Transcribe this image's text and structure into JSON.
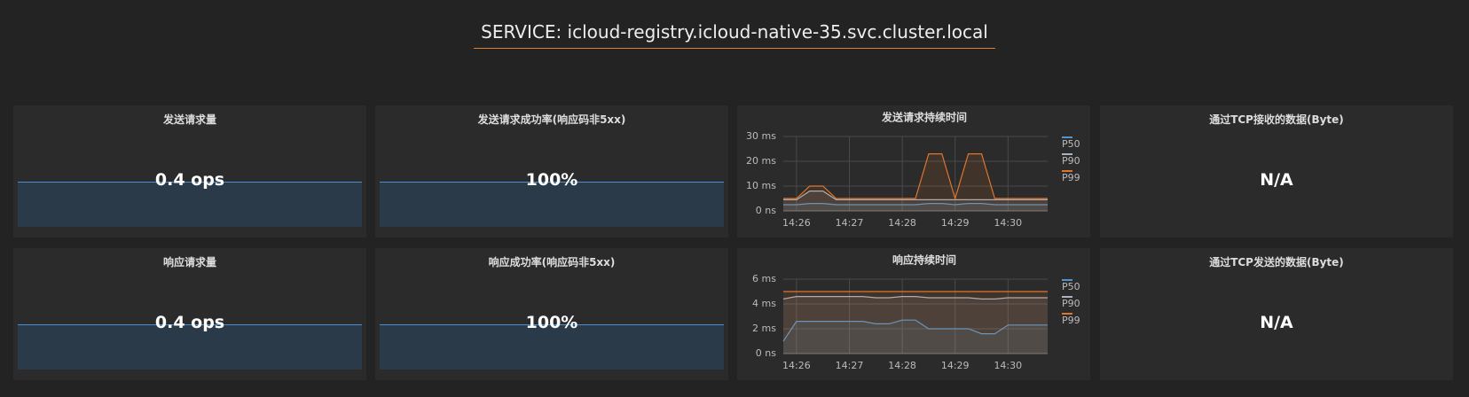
{
  "header": {
    "title": "SERVICE: icloud-registry.icloud-native-35.svc.cluster.local"
  },
  "panels": [
    {
      "title": "发送请求量",
      "value": "0.4 ops"
    },
    {
      "title": "发送请求成功率(响应码非5xx)",
      "value": "100%"
    },
    {
      "title": "通过TCP接收的数据(Byte)",
      "value": "N/A"
    },
    {
      "title": "响应请求量",
      "value": "0.4 ops"
    },
    {
      "title": "响应成功率(响应码非5xx)",
      "value": "100%"
    },
    {
      "title": "通过TCP发送的数据(Byte)",
      "value": "N/A"
    }
  ],
  "chart_data": [
    {
      "type": "line",
      "title": "发送请求持续时间",
      "categories": [
        null,
        "14:26",
        null,
        null,
        null,
        "14:27",
        null,
        null,
        null,
        "14:28",
        null,
        null,
        null,
        "14:29",
        null,
        null,
        null,
        "14:30",
        null,
        null,
        null
      ],
      "series": [
        {
          "name": "P50",
          "color": "#5195ce",
          "values": [
            2.5,
            2.5,
            3,
            3,
            2.5,
            2.5,
            2.5,
            2.5,
            2.5,
            2.5,
            2.5,
            3,
            3,
            2.5,
            3,
            3,
            2.5,
            2.5,
            2.5,
            2.5,
            2.5
          ]
        },
        {
          "name": "P90",
          "color": "#a9b4c0",
          "values": [
            4.5,
            4.5,
            8,
            8,
            4.5,
            4.5,
            4.5,
            4.5,
            4.5,
            4.5,
            4.5,
            4.5,
            4.5,
            4.5,
            4.5,
            4.5,
            4.5,
            4.5,
            4.5,
            4.5,
            4.5
          ]
        },
        {
          "name": "P99",
          "color": "#e0752d",
          "values": [
            5,
            5,
            10,
            10,
            5,
            5,
            5,
            5,
            5,
            5,
            5,
            23,
            23,
            5,
            23,
            23,
            5,
            5,
            5,
            5,
            5
          ]
        }
      ],
      "ylim": [
        0,
        30
      ],
      "yticks": [
        {
          "value": 0,
          "label": "0 ns"
        },
        {
          "value": 10,
          "label": "10 ms"
        },
        {
          "value": 20,
          "label": "20 ms"
        },
        {
          "value": 30,
          "label": "30 ms"
        }
      ],
      "grid": true,
      "legend": "right"
    },
    {
      "type": "line",
      "title": "响应持续时间",
      "categories": [
        null,
        "14:26",
        null,
        null,
        null,
        "14:27",
        null,
        null,
        null,
        "14:28",
        null,
        null,
        null,
        "14:29",
        null,
        null,
        null,
        "14:30",
        null,
        null,
        null
      ],
      "series": [
        {
          "name": "P50",
          "color": "#5195ce",
          "values": [
            1.0,
            2.6,
            2.6,
            2.6,
            2.6,
            2.6,
            2.6,
            2.4,
            2.4,
            2.7,
            2.7,
            2.0,
            2.0,
            2.0,
            2.0,
            1.6,
            1.6,
            2.3,
            2.3,
            2.3,
            2.3
          ]
        },
        {
          "name": "P90",
          "color": "#a9b4c0",
          "values": [
            4.4,
            4.6,
            4.6,
            4.6,
            4.6,
            4.6,
            4.6,
            4.5,
            4.5,
            4.6,
            4.6,
            4.5,
            4.5,
            4.5,
            4.5,
            4.4,
            4.4,
            4.5,
            4.5,
            4.5,
            4.5
          ]
        },
        {
          "name": "P99",
          "color": "#e0752d",
          "values": [
            5,
            5,
            5,
            5,
            5,
            5,
            5,
            5,
            5,
            5,
            5,
            5,
            5,
            5,
            5,
            5,
            5,
            5,
            5,
            5,
            5
          ]
        }
      ],
      "ylim": [
        0,
        6
      ],
      "yticks": [
        {
          "value": 0,
          "label": "0 ns"
        },
        {
          "value": 2,
          "label": "2 ms"
        },
        {
          "value": 4,
          "label": "4 ms"
        },
        {
          "value": 6,
          "label": "6 ms"
        }
      ],
      "grid": true,
      "legend": "right"
    }
  ]
}
